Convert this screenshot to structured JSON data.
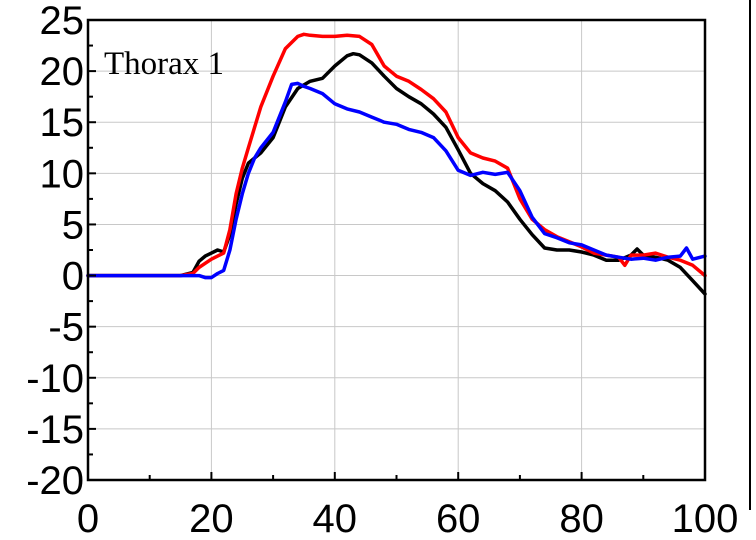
{
  "chart_data": {
    "type": "line",
    "title": "",
    "xlabel": "",
    "ylabel": "",
    "xlim": [
      0,
      100
    ],
    "ylim": [
      -20,
      25
    ],
    "xticks": [
      0,
      20,
      40,
      60,
      80,
      100
    ],
    "yticks": [
      25,
      20,
      15,
      10,
      5,
      0,
      -5,
      -10,
      -15,
      -20
    ],
    "xtick_labels": [
      "0",
      "20",
      "40",
      "60",
      "80",
      "100"
    ],
    "ytick_labels": [
      "25",
      "20",
      "15",
      "10",
      "5",
      "0",
      "-5",
      "-10",
      "-15",
      "-20"
    ],
    "grid": true,
    "annotation": "Thorax 1",
    "series": [
      {
        "color": "#000000",
        "x": [
          0,
          5,
          10,
          15,
          17,
          18,
          19,
          20,
          21,
          22,
          23,
          24,
          25,
          26,
          27,
          28,
          30,
          32,
          34,
          36,
          38,
          40,
          42,
          43,
          44,
          46,
          48,
          50,
          52,
          54,
          56,
          58,
          60,
          62,
          64,
          66,
          68,
          70,
          72,
          74,
          76,
          78,
          80,
          82,
          84,
          86,
          88,
          89,
          90,
          92,
          94,
          96,
          98,
          100
        ],
        "y": [
          0,
          0,
          0,
          0,
          0.3,
          1.4,
          1.9,
          2.2,
          2.5,
          2.3,
          4,
          7,
          9.5,
          11,
          11.5,
          12,
          13.5,
          16.5,
          18.3,
          19,
          19.3,
          20.5,
          21.5,
          21.7,
          21.6,
          20.8,
          19.5,
          18.3,
          17.5,
          16.8,
          15.8,
          14.5,
          12.3,
          10,
          9,
          8.3,
          7.2,
          5.5,
          4,
          2.7,
          2.5,
          2.5,
          2.3,
          2,
          1.5,
          1.5,
          2,
          2.6,
          2,
          1.8,
          1.5,
          0.8,
          -0.5,
          -1.8
        ]
      },
      {
        "color": "#ff0000",
        "x": [
          0,
          5,
          10,
          15,
          17,
          18,
          19,
          20,
          21,
          22,
          23,
          24,
          25,
          26,
          27,
          28,
          30,
          32,
          34,
          35,
          36,
          38,
          40,
          42,
          44,
          46,
          48,
          50,
          52,
          54,
          56,
          58,
          60,
          62,
          64,
          66,
          68,
          70,
          72,
          74,
          76,
          78,
          80,
          82,
          84,
          86,
          87,
          88,
          90,
          92,
          94,
          96,
          98,
          100
        ],
        "y": [
          0,
          0,
          0,
          0,
          0.2,
          0.8,
          1.2,
          1.6,
          1.9,
          2.2,
          4.5,
          8,
          10.5,
          12.5,
          14.5,
          16.5,
          19.5,
          22.2,
          23.4,
          23.6,
          23.5,
          23.4,
          23.4,
          23.5,
          23.4,
          22.6,
          20.5,
          19.5,
          19,
          18.2,
          17.3,
          16,
          13.5,
          12,
          11.5,
          11.2,
          10.5,
          7.5,
          5.5,
          4.5,
          3.8,
          3.3,
          2.8,
          2.2,
          2,
          1.8,
          1,
          2,
          2,
          2.2,
          1.8,
          1.5,
          1,
          0
        ]
      },
      {
        "color": "#0000ff",
        "x": [
          0,
          5,
          10,
          15,
          18,
          19,
          20,
          21,
          22,
          23,
          24,
          25,
          26,
          27,
          28,
          30,
          32,
          33,
          34,
          35,
          36,
          38,
          40,
          42,
          44,
          46,
          48,
          50,
          52,
          54,
          56,
          58,
          60,
          62,
          64,
          66,
          68,
          70,
          72,
          74,
          76,
          78,
          80,
          82,
          84,
          86,
          88,
          90,
          92,
          94,
          96,
          97,
          98,
          100
        ],
        "y": [
          0,
          0,
          0,
          0,
          0,
          -0.2,
          -0.2,
          0.2,
          0.5,
          2.5,
          5.5,
          8,
          10,
          11.5,
          12.5,
          14,
          17,
          18.7,
          18.8,
          18.5,
          18.3,
          17.8,
          16.8,
          16.3,
          16,
          15.5,
          15,
          14.8,
          14.3,
          14,
          13.5,
          12.2,
          10.3,
          9.8,
          10.1,
          9.9,
          10.1,
          8.3,
          5.7,
          4.1,
          3.7,
          3.2,
          3,
          2.5,
          2,
          1.8,
          1.6,
          1.7,
          1.5,
          1.8,
          1.9,
          2.7,
          1.6,
          1.9
        ]
      }
    ]
  }
}
